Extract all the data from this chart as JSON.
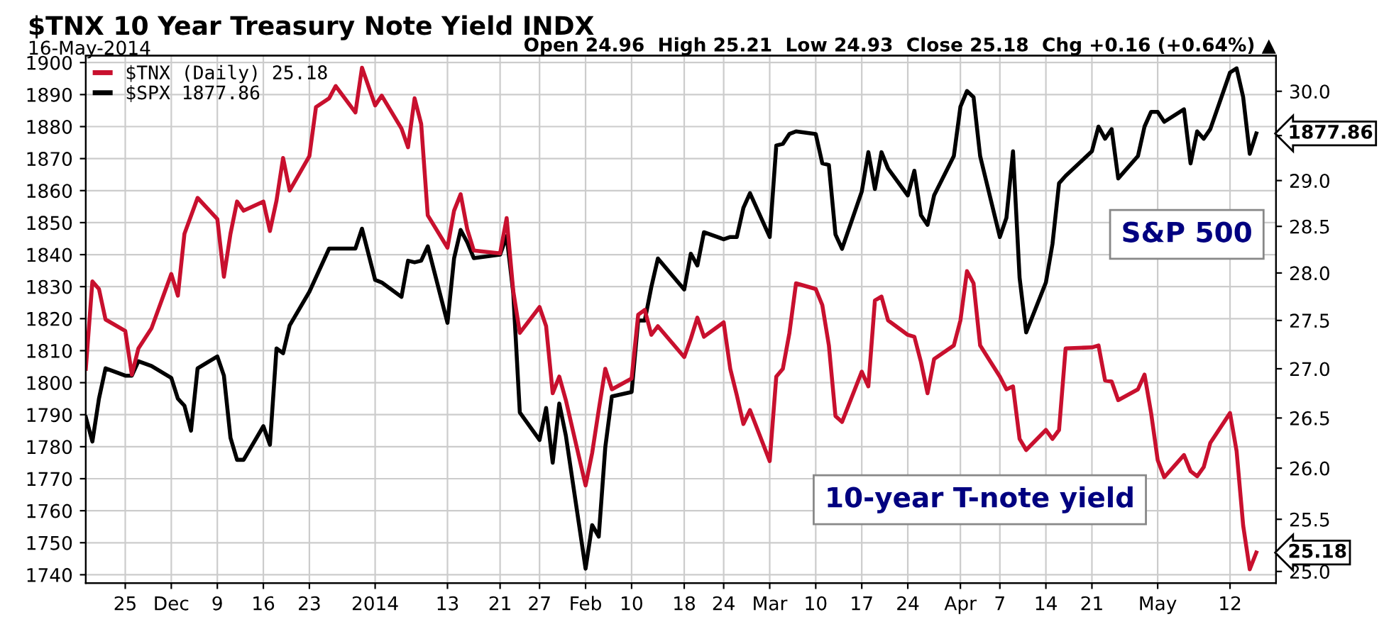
{
  "chart_data": {
    "type": "line",
    "title": "$TNX 10 Year Treasury Note Yield INDX",
    "subtitle": "16-May-2014",
    "annotations": [
      "Open 24.96  High 25.21  Low 24.93  Close 25.18  Chg +0.16 (+0.64%) ▲",
      "S&P 500",
      "10-year T-note yield"
    ],
    "xlim": [
      "2013-11-19",
      "2014-05-19"
    ],
    "xticks": [
      {
        "value": "2013-11-25",
        "label": "25"
      },
      {
        "value": "2013-12-02",
        "label": "Dec"
      },
      {
        "value": "2013-12-09",
        "label": "9"
      },
      {
        "value": "2013-12-16",
        "label": "16"
      },
      {
        "value": "2013-12-23",
        "label": "23"
      },
      {
        "value": "2014-01-02",
        "label": "2014"
      },
      {
        "value": "2014-01-13",
        "label": "13"
      },
      {
        "value": "2014-01-21",
        "label": "21"
      },
      {
        "value": "2014-01-27",
        "label": "27"
      },
      {
        "value": "2014-02-03",
        "label": "Feb"
      },
      {
        "value": "2014-02-10",
        "label": "10"
      },
      {
        "value": "2014-02-18",
        "label": "18"
      },
      {
        "value": "2014-02-24",
        "label": "24"
      },
      {
        "value": "2014-03-03",
        "label": "Mar"
      },
      {
        "value": "2014-03-10",
        "label": "10"
      },
      {
        "value": "2014-03-17",
        "label": "17"
      },
      {
        "value": "2014-03-24",
        "label": "24"
      },
      {
        "value": "2014-04-01",
        "label": "Apr"
      },
      {
        "value": "2014-04-07",
        "label": "7"
      },
      {
        "value": "2014-04-14",
        "label": "14"
      },
      {
        "value": "2014-04-21",
        "label": "21"
      },
      {
        "value": "2014-05-01",
        "label": "May"
      },
      {
        "value": "2014-05-12",
        "label": "12"
      }
    ],
    "ylim": [
      1737.4,
      1902.2
    ],
    "yticks": [
      1740,
      1750,
      1760,
      1770,
      1780,
      1790,
      1800,
      1810,
      1820,
      1830,
      1840,
      1850,
      1860,
      1870,
      1880,
      1890,
      1900
    ],
    "y2lim": [
      24.89,
      30.41
    ],
    "y2ticks": [
      {
        "value": 25,
        "label": "25.0"
      },
      {
        "value": 25.5,
        "label": "25.5"
      },
      {
        "value": 26,
        "label": "26.0"
      },
      {
        "value": 26.5,
        "label": "26.5"
      },
      {
        "value": 27,
        "label": "27.0"
      },
      {
        "value": 27.5,
        "label": "27.5"
      },
      {
        "value": 28,
        "label": "28.0"
      },
      {
        "value": 28.5,
        "label": "28.5"
      },
      {
        "value": 29,
        "label": "29.0"
      },
      {
        "value": 29.5,
        "label": null
      },
      {
        "value": 30,
        "label": "30.0"
      }
    ],
    "log": "y2",
    "grid": true,
    "legend": "top left",
    "line_style": "solid",
    "marker": "none",
    "series": [
      {
        "name": "$TNX (Daily) 25.18",
        "color": "#c8102e",
        "axis": "y2",
        "x": [
          "2013-11-19",
          "2013-11-20",
          "2013-11-21",
          "2013-11-22",
          "2013-11-25",
          "2013-11-26",
          "2013-11-27",
          "2013-11-29",
          "2013-12-02",
          "2013-12-03",
          "2013-12-04",
          "2013-12-06",
          "2013-12-09",
          "2013-12-10",
          "2013-12-11",
          "2013-12-12",
          "2013-12-13",
          "2013-12-16",
          "2013-12-17",
          "2013-12-18",
          "2013-12-19",
          "2013-12-20",
          "2013-12-23",
          "2013-12-24",
          "2013-12-26",
          "2013-12-27",
          "2013-12-30",
          "2013-12-31",
          "2014-01-02",
          "2014-01-03",
          "2014-01-06",
          "2014-01-07",
          "2014-01-08",
          "2014-01-09",
          "2014-01-10",
          "2014-01-13",
          "2014-01-14",
          "2014-01-15",
          "2014-01-16",
          "2014-01-17",
          "2014-01-21",
          "2014-01-22",
          "2014-01-23",
          "2014-01-24",
          "2014-01-27",
          "2014-01-28",
          "2014-01-29",
          "2014-01-30",
          "2014-01-31",
          "2014-02-03",
          "2014-02-04",
          "2014-02-05",
          "2014-02-06",
          "2014-02-07",
          "2014-02-10",
          "2014-02-11",
          "2014-02-12",
          "2014-02-13",
          "2014-02-14",
          "2014-02-18",
          "2014-02-19",
          "2014-02-20",
          "2014-02-21",
          "2014-02-24",
          "2014-02-25",
          "2014-02-26",
          "2014-02-27",
          "2014-02-28",
          "2014-03-03",
          "2014-03-04",
          "2014-03-05",
          "2014-03-06",
          "2014-03-07",
          "2014-03-10",
          "2014-03-11",
          "2014-03-12",
          "2014-03-13",
          "2014-03-14",
          "2014-03-17",
          "2014-03-18",
          "2014-03-19",
          "2014-03-20",
          "2014-03-21",
          "2014-03-24",
          "2014-03-25",
          "2014-03-26",
          "2014-03-27",
          "2014-03-28",
          "2014-03-31",
          "2014-04-01",
          "2014-04-02",
          "2014-04-03",
          "2014-04-04",
          "2014-04-07",
          "2014-04-08",
          "2014-04-09",
          "2014-04-10",
          "2014-04-11",
          "2014-04-14",
          "2014-04-15",
          "2014-04-16",
          "2014-04-17",
          "2014-04-21",
          "2014-04-22",
          "2014-04-23",
          "2014-04-24",
          "2014-04-25",
          "2014-04-28",
          "2014-04-29",
          "2014-04-30",
          "2014-05-01",
          "2014-05-02",
          "2014-05-05",
          "2014-05-06",
          "2014-05-07",
          "2014-05-08",
          "2014-05-09",
          "2014-05-12",
          "2014-05-13",
          "2014-05-14",
          "2014-05-15",
          "2014-05-16"
        ],
        "values": [
          27.0,
          27.91,
          27.83,
          27.51,
          27.39,
          26.94,
          27.21,
          27.42,
          27.99,
          27.76,
          28.42,
          28.81,
          28.58,
          27.96,
          28.42,
          28.77,
          28.67,
          28.77,
          28.45,
          28.78,
          29.25,
          28.89,
          29.27,
          29.82,
          29.92,
          30.06,
          29.76,
          30.27,
          29.84,
          29.95,
          29.58,
          29.37,
          29.92,
          29.63,
          28.62,
          28.27,
          28.67,
          28.85,
          28.47,
          28.24,
          28.21,
          28.59,
          27.81,
          27.37,
          27.64,
          27.44,
          26.75,
          26.92,
          26.68,
          25.83,
          26.15,
          26.58,
          27.0,
          26.79,
          26.9,
          27.56,
          27.61,
          27.35,
          27.44,
          27.12,
          27.31,
          27.53,
          27.33,
          27.48,
          27.0,
          26.73,
          26.44,
          26.58,
          26.07,
          26.92,
          27.0,
          27.37,
          27.89,
          27.83,
          27.66,
          27.24,
          26.52,
          26.46,
          26.97,
          26.82,
          27.71,
          27.75,
          27.5,
          27.35,
          27.33,
          27.07,
          26.75,
          27.1,
          27.24,
          27.5,
          28.02,
          27.89,
          27.24,
          26.92,
          26.79,
          26.82,
          26.29,
          26.18,
          26.38,
          26.29,
          26.38,
          27.21,
          27.22,
          27.24,
          26.88,
          26.87,
          26.68,
          26.79,
          26.94,
          26.55,
          26.08,
          25.91,
          26.13,
          25.97,
          25.92,
          26.01,
          26.25,
          26.55,
          26.17,
          25.44,
          25.02,
          25.18
        ],
        "value_labels": [
          null,
          null,
          null,
          null,
          null,
          null,
          null,
          null,
          null,
          null,
          null,
          null,
          null,
          null,
          null,
          null,
          null,
          null,
          null,
          null,
          null,
          null,
          null,
          null,
          null,
          null,
          null,
          null,
          null,
          null,
          null,
          null,
          null,
          null,
          null,
          null,
          null,
          null,
          null,
          null,
          null,
          null,
          null,
          null,
          null,
          null,
          null,
          null,
          null,
          null,
          null,
          null,
          null,
          null,
          null,
          null,
          null,
          null,
          null,
          null,
          null,
          null,
          null,
          null,
          null,
          null,
          null,
          null,
          null,
          null,
          null,
          null,
          null,
          null,
          null,
          null,
          null,
          null,
          null,
          null,
          null,
          null,
          null,
          null,
          null,
          null,
          null,
          null,
          null,
          null,
          null,
          null,
          null,
          null,
          null,
          null,
          null,
          null,
          null,
          null,
          null,
          null,
          null,
          null,
          null,
          null,
          null,
          null,
          null,
          null,
          null,
          null,
          null,
          null,
          null,
          null,
          null,
          null,
          null,
          null,
          null,
          "25.18"
        ]
      },
      {
        "name": "$SPX 1877.86",
        "color": "#000000",
        "x": [
          "2013-11-19",
          "2013-11-20",
          "2013-11-21",
          "2013-11-22",
          "2013-11-25",
          "2013-11-26",
          "2013-11-27",
          "2013-11-29",
          "2013-12-02",
          "2013-12-03",
          "2013-12-04",
          "2013-12-05",
          "2013-12-06",
          "2013-12-09",
          "2013-12-10",
          "2013-12-11",
          "2013-12-12",
          "2013-12-13",
          "2013-12-16",
          "2013-12-17",
          "2013-12-18",
          "2013-12-19",
          "2013-12-20",
          "2013-12-23",
          "2013-12-24",
          "2013-12-26",
          "2013-12-27",
          "2013-12-30",
          "2013-12-31",
          "2014-01-02",
          "2014-01-03",
          "2014-01-06",
          "2014-01-07",
          "2014-01-08",
          "2014-01-09",
          "2014-01-10",
          "2014-01-13",
          "2014-01-14",
          "2014-01-15",
          "2014-01-16",
          "2014-01-17",
          "2014-01-21",
          "2014-01-22",
          "2014-01-23",
          "2014-01-24",
          "2014-01-27",
          "2014-01-28",
          "2014-01-29",
          "2014-01-30",
          "2014-01-31",
          "2014-02-03",
          "2014-02-04",
          "2014-02-05",
          "2014-02-06",
          "2014-02-07",
          "2014-02-10",
          "2014-02-11",
          "2014-02-12",
          "2014-02-13",
          "2014-02-14",
          "2014-02-18",
          "2014-02-19",
          "2014-02-20",
          "2014-02-21",
          "2014-02-24",
          "2014-02-25",
          "2014-02-26",
          "2014-02-27",
          "2014-02-28",
          "2014-03-03",
          "2014-03-04",
          "2014-03-05",
          "2014-03-06",
          "2014-03-07",
          "2014-03-10",
          "2014-03-11",
          "2014-03-12",
          "2014-03-13",
          "2014-03-14",
          "2014-03-17",
          "2014-03-18",
          "2014-03-19",
          "2014-03-20",
          "2014-03-21",
          "2014-03-24",
          "2014-03-25",
          "2014-03-26",
          "2014-03-27",
          "2014-03-28",
          "2014-03-31",
          "2014-04-01",
          "2014-04-02",
          "2014-04-03",
          "2014-04-04",
          "2014-04-07",
          "2014-04-08",
          "2014-04-09",
          "2014-04-10",
          "2014-04-11",
          "2014-04-14",
          "2014-04-15",
          "2014-04-16",
          "2014-04-17",
          "2014-04-21",
          "2014-04-22",
          "2014-04-23",
          "2014-04-24",
          "2014-04-25",
          "2014-04-28",
          "2014-04-29",
          "2014-04-30",
          "2014-05-01",
          "2014-05-02",
          "2014-05-05",
          "2014-05-06",
          "2014-05-07",
          "2014-05-08",
          "2014-05-09",
          "2014-05-12",
          "2014-05-13",
          "2014-05-14",
          "2014-05-15",
          "2014-05-16"
        ],
        "values": [
          1789.2,
          1781.6,
          1795.0,
          1804.5,
          1802.2,
          1802.2,
          1806.7,
          1805.2,
          1801.5,
          1795.0,
          1792.8,
          1785.0,
          1804.5,
          1808.2,
          1802.2,
          1782.8,
          1775.9,
          1775.9,
          1786.4,
          1780.6,
          1810.7,
          1809.2,
          1817.9,
          1828.4,
          1832.9,
          1841.9,
          1841.9,
          1841.9,
          1848.1,
          1832.1,
          1831.3,
          1826.8,
          1838.1,
          1837.6,
          1838.1,
          1842.6,
          1818.7,
          1838.8,
          1847.7,
          1843.9,
          1838.9,
          1840.0,
          1845.8,
          1828.0,
          1790.7,
          1782.1,
          1792.1,
          1775.0,
          1793.5,
          1783.5,
          1741.9,
          1755.5,
          1751.9,
          1779.9,
          1795.7,
          1797.1,
          1819.4,
          1819.4,
          1829.9,
          1838.8,
          1829.1,
          1840.3,
          1836.6,
          1847.0,
          1844.8,
          1845.5,
          1845.5,
          1854.6,
          1859.2,
          1845.5,
          1874.1,
          1874.6,
          1877.7,
          1878.5,
          1877.7,
          1868.5,
          1868.0,
          1846.3,
          1841.8,
          1859.7,
          1872.0,
          1860.5,
          1872.0,
          1866.9,
          1858.5,
          1866.2,
          1852.3,
          1849.3,
          1858.5,
          1870.8,
          1886.2,
          1891.1,
          1889.2,
          1870.8,
          1845.5,
          1851.5,
          1872.3,
          1832.8,
          1815.7,
          1831.3,
          1843.3,
          1862.3,
          1864.6,
          1872.3,
          1880.0,
          1876.2,
          1879.2,
          1863.8,
          1870.8,
          1880.0,
          1884.6,
          1884.6,
          1881.5,
          1885.4,
          1868.5,
          1878.5,
          1876.2,
          1879.2,
          1896.9,
          1898.2,
          1889.2,
          1871.5,
          1877.86
        ],
        "value_labels": [
          null,
          null,
          null,
          null,
          null,
          null,
          null,
          null,
          null,
          null,
          null,
          null,
          null,
          null,
          null,
          null,
          null,
          null,
          null,
          null,
          null,
          null,
          null,
          null,
          null,
          null,
          null,
          null,
          null,
          null,
          null,
          null,
          null,
          null,
          null,
          null,
          null,
          null,
          null,
          null,
          null,
          null,
          null,
          null,
          null,
          null,
          null,
          null,
          null,
          null,
          null,
          null,
          null,
          null,
          null,
          null,
          null,
          null,
          null,
          null,
          null,
          null,
          null,
          null,
          null,
          null,
          null,
          null,
          null,
          null,
          null,
          null,
          null,
          null,
          null,
          null,
          null,
          null,
          null,
          null,
          null,
          null,
          null,
          null,
          null,
          null,
          null,
          null,
          null,
          null,
          null,
          null,
          null,
          null,
          null,
          null,
          null,
          null,
          null,
          null,
          null,
          null,
          null,
          null,
          null,
          null,
          null,
          null,
          null,
          null,
          null,
          null,
          null,
          null,
          null,
          null,
          null,
          null,
          null,
          null,
          null,
          null,
          "1877.86"
        ]
      }
    ]
  }
}
